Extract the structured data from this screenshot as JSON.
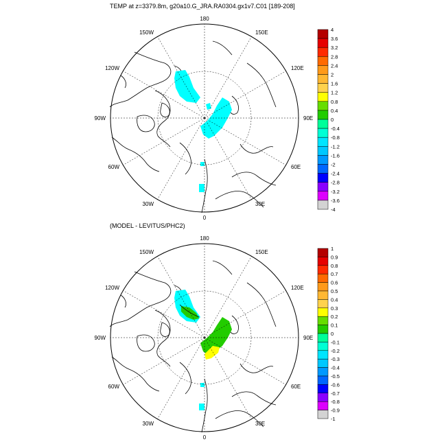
{
  "top_panel": {
    "title": "TEMP at z=3379.8m, g20a10.G_JRA.RA0304.gx1v7.C01 [189-208]",
    "longitude_labels": [
      "180",
      "150E",
      "120E",
      "90E",
      "60E",
      "30E",
      "0",
      "30W",
      "60W",
      "90W",
      "120W",
      "150W"
    ],
    "colorbar": {
      "labels": [
        "4",
        "3.6",
        "3.2",
        "2.8",
        "2.4",
        "2",
        "1.6",
        "1.2",
        "0.8",
        "0.4",
        "0",
        "-0.4",
        "-0.8",
        "-1.2",
        "-1.6",
        "-2",
        "-2.4",
        "-2.8",
        "-3.2",
        "-3.6",
        "-4"
      ],
      "colors": [
        "#b40000",
        "#e60000",
        "#ff2a00",
        "#ff6a00",
        "#ff9a1a",
        "#ffb833",
        "#ffd24d",
        "#ffff00",
        "#66dd00",
        "#22cc00",
        "#00ff99",
        "#00ffd5",
        "#00e5ff",
        "#00c8ff",
        "#0099ff",
        "#0066ff",
        "#0000ff",
        "#8a00ff",
        "#dd00ff",
        "#d3d3d3"
      ]
    }
  },
  "bottom_panel": {
    "title": "(MODEL - LEVITUS/PHC2)",
    "longitude_labels": [
      "180",
      "150E",
      "120E",
      "90E",
      "60E",
      "30E",
      "0",
      "30W",
      "60W",
      "90W",
      "120W",
      "150W"
    ],
    "colorbar": {
      "labels": [
        "1",
        "0.9",
        "0.8",
        "0.7",
        "0.6",
        "0.5",
        "0.4",
        "0.3",
        "0.2",
        "0.1",
        "0",
        "-0.1",
        "-0.2",
        "-0.3",
        "-0.4",
        "-0.5",
        "-0.6",
        "-0.7",
        "-0.8",
        "-0.9",
        "-1"
      ],
      "colors": [
        "#b40000",
        "#e60000",
        "#ff2a00",
        "#ff6a00",
        "#ff9a1a",
        "#ffb833",
        "#ffd24d",
        "#ffff00",
        "#66dd00",
        "#22cc00",
        "#00ff99",
        "#00ffd5",
        "#00e5ff",
        "#00c8ff",
        "#0099ff",
        "#0066ff",
        "#0000ff",
        "#8a00ff",
        "#dd00ff",
        "#d3d3d3"
      ]
    }
  }
}
